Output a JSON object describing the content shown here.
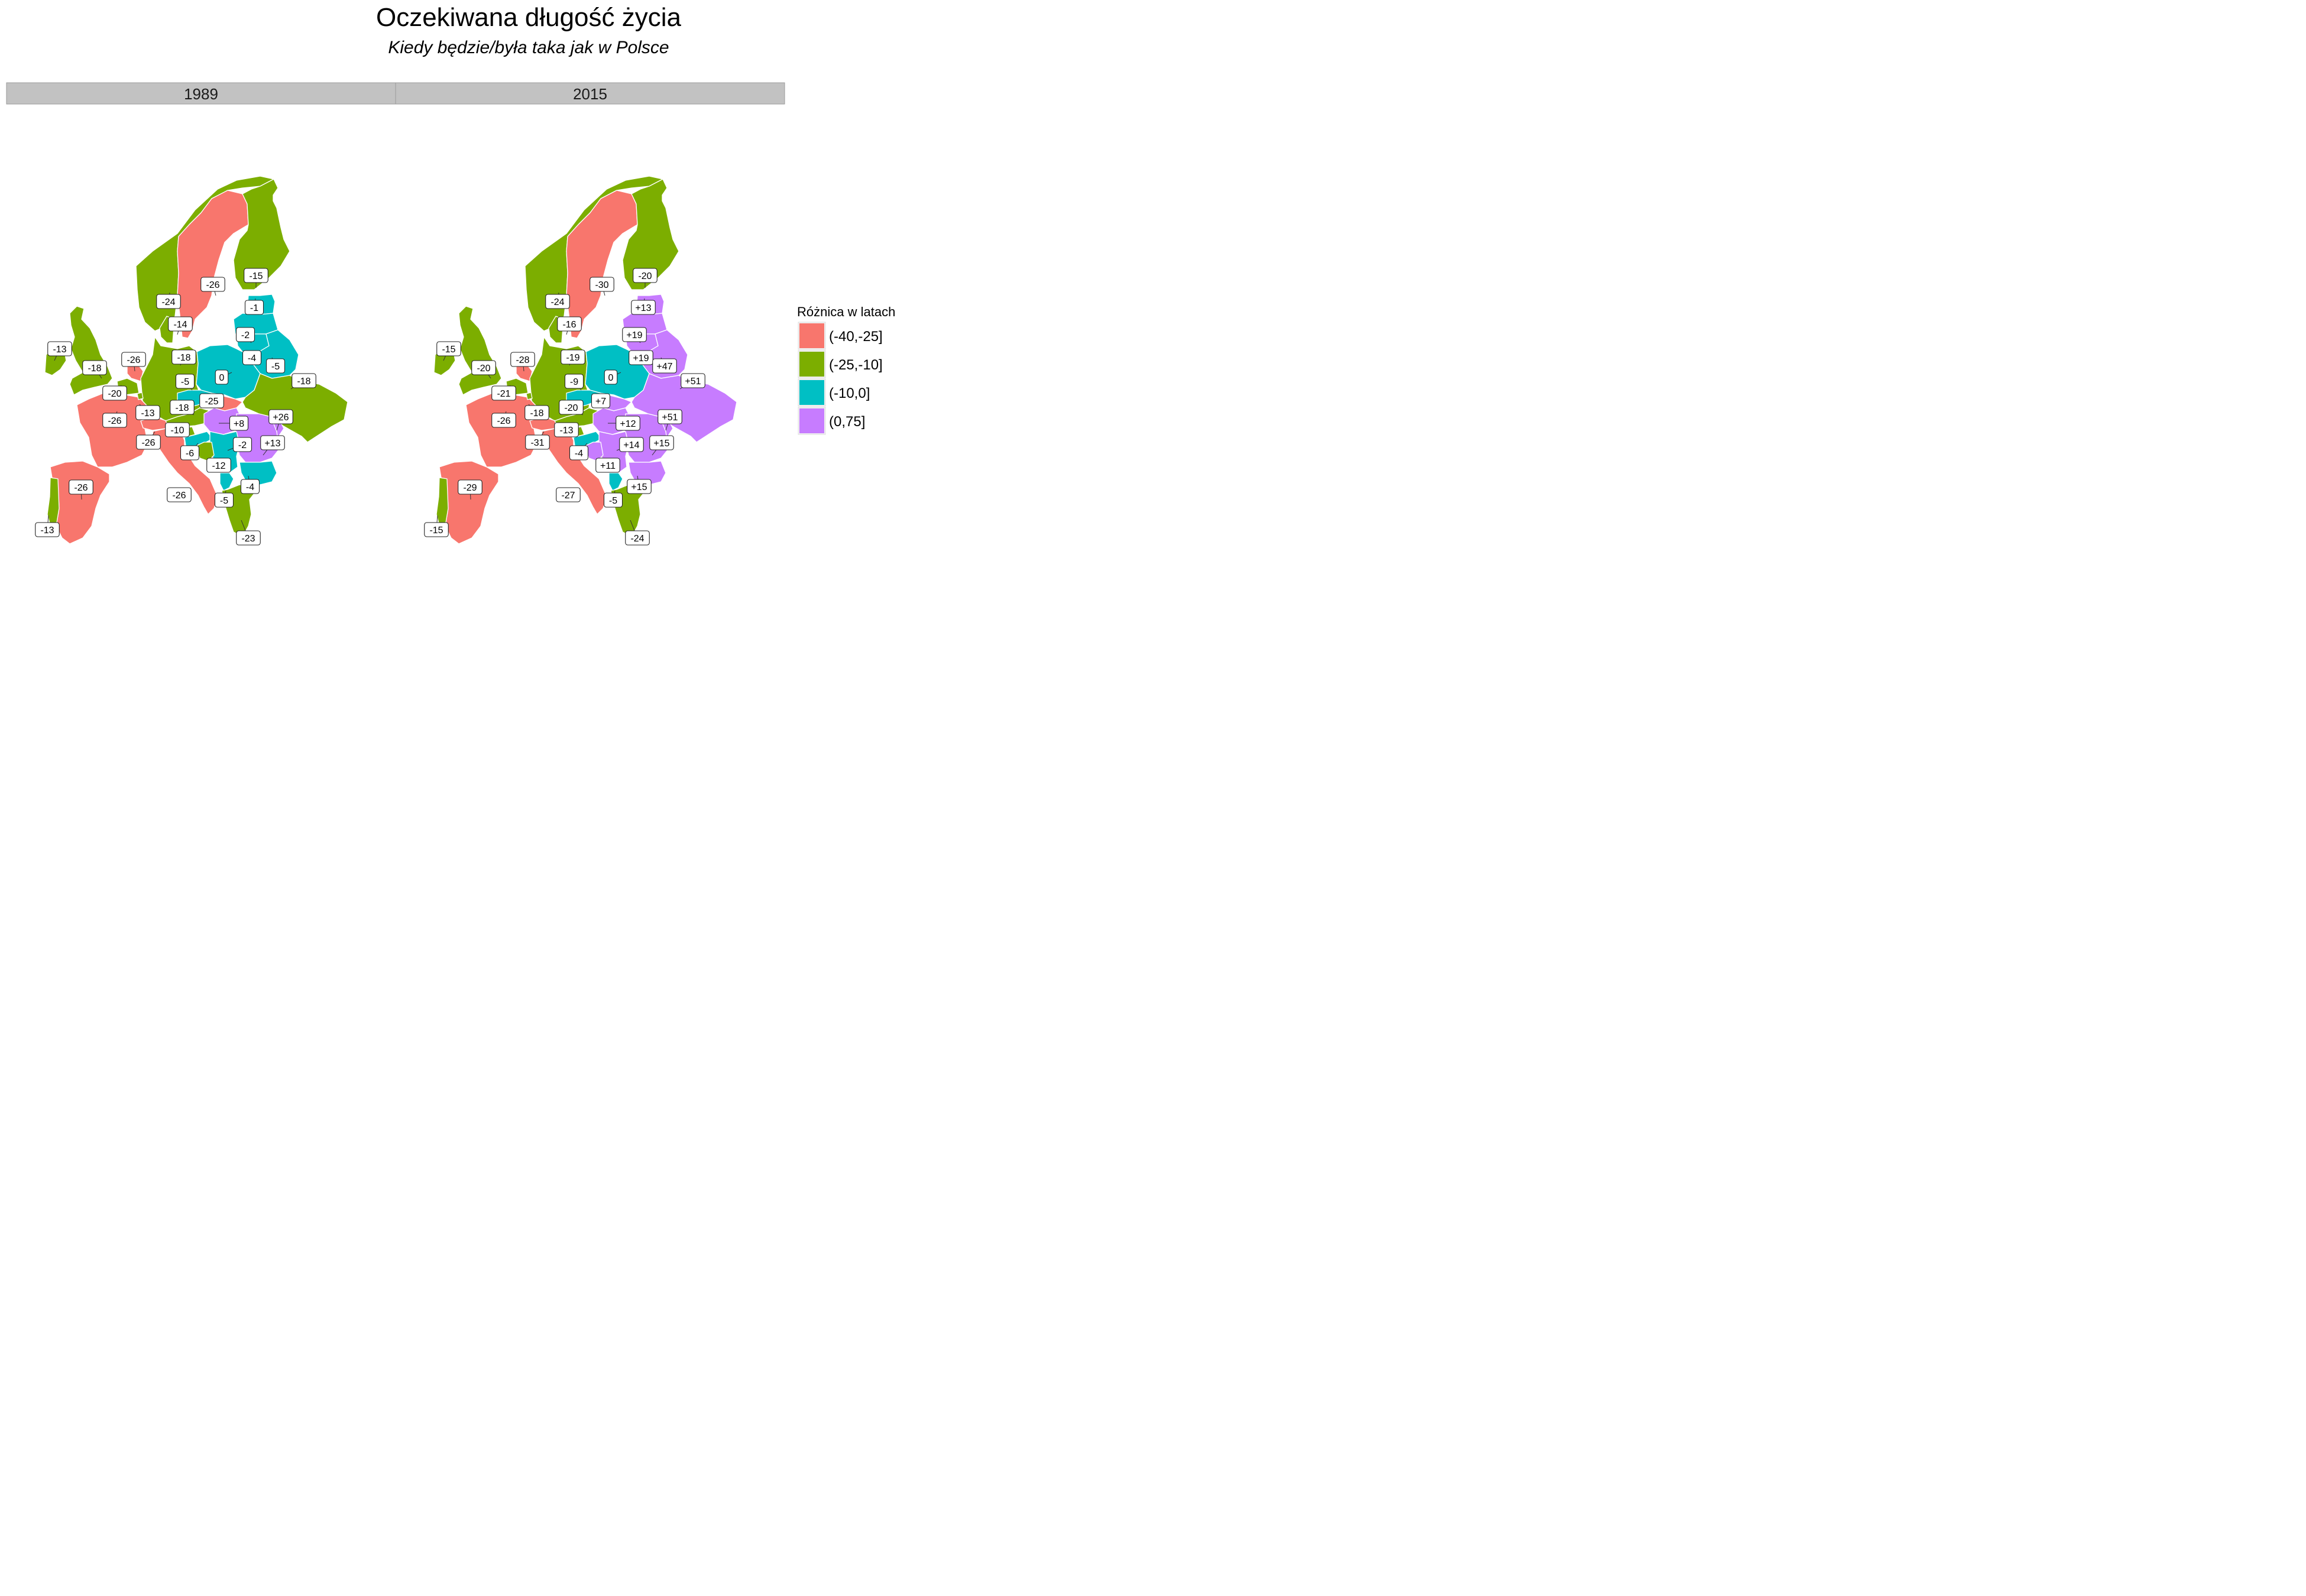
{
  "title": "Oczekiwana długość życia",
  "subtitle": "Kiedy będzie/była taka jak w Polsce",
  "legend": {
    "title": "Różnica w latach",
    "items": [
      {
        "label": "(-40,-25]",
        "color": "#F8766D"
      },
      {
        "label": "(-25,-10]",
        "color": "#7CAE00"
      },
      {
        "label": "(-10,0]",
        "color": "#00BFC4"
      },
      {
        "label": "(0,75]",
        "color": "#C77CFF"
      }
    ]
  },
  "panels": [
    {
      "label": "1989",
      "countries": {
        "norway": "-24",
        "sweden": "-26",
        "finland": "-15",
        "estonia": "-1",
        "latvia": "-2",
        "lithuania": "-4",
        "belarus": "-5",
        "denmark": "-14",
        "ireland": "-13",
        "uk": "-18",
        "netherlands": "-26",
        "belgium": "-20",
        "germany": "-18",
        "poland": "0",
        "ukraine": "-18",
        "czechia": "-5",
        "slovakia": "-25",
        "france": "-26",
        "luxembourg": "-13",
        "switzerland": "-26",
        "austria": "-18",
        "hungary": "+8",
        "moldova": "+26",
        "romania": "+13",
        "slovenia": "-10",
        "croatia": "-6",
        "serbia": "-2",
        "bosnia": "-12",
        "bulgaria": "-4",
        "macedonia": "-5",
        "greece": "-23",
        "italy": "-26",
        "spain": "-26",
        "portugal": "-13"
      }
    },
    {
      "label": "2015",
      "countries": {
        "norway": "-24",
        "sweden": "-30",
        "finland": "-20",
        "estonia": "+13",
        "latvia": "+19",
        "lithuania": "+19",
        "belarus": "+47",
        "denmark": "-16",
        "ireland": "-15",
        "uk": "-20",
        "netherlands": "-28",
        "belgium": "-21",
        "germany": "-19",
        "poland": "0",
        "ukraine": "+51",
        "czechia": "-9",
        "slovakia": "+7",
        "france": "-26",
        "luxembourg": "-18",
        "switzerland": "-31",
        "austria": "-20",
        "hungary": "+12",
        "moldova": "+51",
        "romania": "+15",
        "slovenia": "-13",
        "croatia": "-4",
        "serbia": "+14",
        "bosnia": "+11",
        "bulgaria": "+15",
        "macedonia": "-5",
        "greece": "-24",
        "italy": "-27",
        "spain": "-29",
        "portugal": "-15"
      }
    }
  ]
}
